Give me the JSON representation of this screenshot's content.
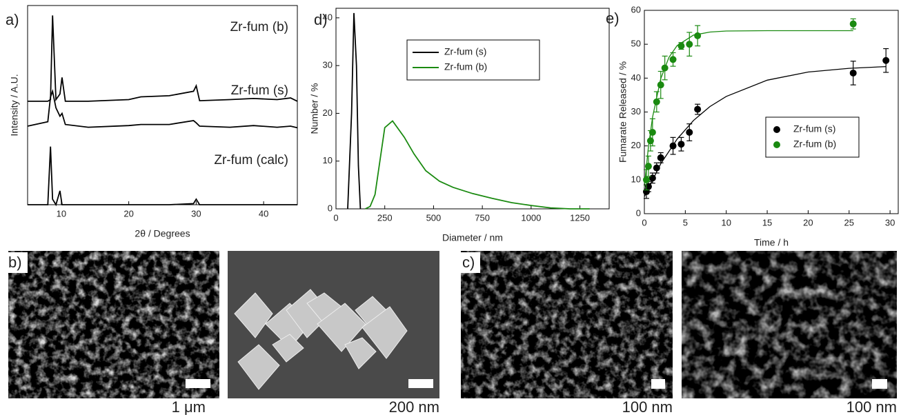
{
  "chart_data": [
    {
      "type": "line",
      "label": "a)",
      "xlabel": "2θ / Degrees",
      "ylabel": "Intensity / A.U.",
      "xlim": [
        5,
        45
      ],
      "xticks": [
        10,
        20,
        30,
        40
      ],
      "ylim": [
        0,
        3.6
      ],
      "x": [
        5,
        8,
        8.4,
        8.7,
        9.2,
        9.8,
        10.1,
        10.6,
        14,
        20,
        21.8,
        26,
        29.6,
        30,
        30.5,
        35,
        38.5,
        42,
        44,
        45
      ],
      "series": [
        {
          "name": "Zr-fum (b)",
          "color": "#000000",
          "values": [
            1.87,
            1.87,
            1.9,
            3.42,
            1.9,
            2.0,
            2.3,
            1.87,
            1.87,
            1.9,
            1.95,
            1.97,
            2.05,
            2.15,
            1.88,
            1.9,
            1.92,
            1.9,
            1.93,
            1.87
          ]
        },
        {
          "name": "Zr-fum (s)",
          "color": "#000000",
          "values": [
            1.42,
            1.5,
            1.95,
            2.05,
            1.75,
            1.6,
            1.65,
            1.45,
            1.4,
            1.43,
            1.45,
            1.45,
            1.52,
            1.48,
            1.42,
            1.4,
            1.43,
            1.4,
            1.42,
            1.39
          ]
        },
        {
          "name": "Zr-fum (calc)",
          "color": "#000000",
          "values": [
            0,
            0,
            1.05,
            0.1,
            0,
            0.25,
            0,
            0,
            0,
            0,
            0,
            0,
            0.02,
            0.1,
            0,
            0,
            0,
            0,
            0,
            0
          ]
        }
      ]
    },
    {
      "type": "line",
      "label": "d)",
      "xlabel": "Diameter / nm",
      "ylabel": "Number / %",
      "xlim": [
        0,
        1400
      ],
      "xticks": [
        0,
        250,
        500,
        750,
        1000,
        1250
      ],
      "ylim": [
        0,
        42
      ],
      "yticks": [
        0,
        10,
        20,
        30,
        40
      ],
      "legend": "upper center",
      "series": [
        {
          "name": "Zr-fum (s)",
          "color": "#000000",
          "x": [
            60,
            80,
            92,
            105,
            115,
            125
          ],
          "values": [
            0,
            20,
            41,
            30,
            9,
            0
          ]
        },
        {
          "name": "Zr-fum (b)",
          "color": "#1a8a10",
          "x": [
            150,
            175,
            200,
            250,
            290,
            350,
            400,
            460,
            530,
            600,
            700,
            800,
            900,
            1000,
            1100,
            1200,
            1300
          ],
          "values": [
            0,
            0.5,
            3,
            17,
            18.4,
            15,
            11.5,
            8,
            5.8,
            4.5,
            3.2,
            2.2,
            1.3,
            0.7,
            0.2,
            0,
            0
          ]
        }
      ]
    },
    {
      "type": "scatter",
      "label": "e)",
      "xlabel": "Time / h",
      "ylabel": "Fumarate Released / %",
      "xlim": [
        0,
        31
      ],
      "xticks": [
        0,
        5,
        10,
        15,
        20,
        25,
        30
      ],
      "ylim": [
        0,
        60
      ],
      "yticks": [
        0,
        10,
        20,
        30,
        40,
        50,
        60
      ],
      "legend": "center right",
      "series": [
        {
          "name": "Zr-fum (s)",
          "color": "#000000",
          "x": [
            0.25,
            0.5,
            1,
            1.5,
            2,
            3.5,
            4.5,
            5.5,
            6.5,
            25.5,
            29.5
          ],
          "values": [
            6.5,
            8,
            10.5,
            13.5,
            16.5,
            20,
            20.5,
            24,
            30.8,
            41.5,
            45.2
          ],
          "errors": [
            2,
            1.5,
            1.5,
            1.5,
            1.5,
            2.5,
            2,
            2.5,
            1.5,
            3.5,
            3.5
          ]
        },
        {
          "name": "Zr-fum (b)",
          "color": "#1a8a10",
          "x": [
            0.25,
            0.5,
            0.75,
            1,
            1.5,
            2,
            2.5,
            3.5,
            4.5,
            5.5,
            6.5,
            25.5
          ],
          "values": [
            10,
            14,
            21.5,
            24,
            33,
            38,
            43,
            45.5,
            49.5,
            50,
            52.5,
            56
          ],
          "errors": [
            3,
            3,
            3,
            4,
            3,
            4,
            3.5,
            2,
            1,
            3.5,
            3,
            1.5
          ]
        }
      ],
      "fits": [
        {
          "color": "#000000",
          "x": [
            0,
            2,
            4,
            6,
            8,
            10,
            15,
            20,
            25,
            29.5
          ],
          "values": [
            5,
            14.7,
            22,
            27.5,
            31.6,
            34.6,
            39.4,
            41.8,
            42.9,
            43.4
          ]
        },
        {
          "color": "#1a8a10",
          "x": [
            0,
            0.5,
            1,
            2,
            3,
            4,
            6,
            8,
            10,
            15,
            20,
            25.5
          ],
          "values": [
            8,
            19.7,
            28.5,
            39.8,
            46.1,
            49.6,
            52.7,
            53.6,
            53.9,
            54,
            54,
            54
          ]
        }
      ]
    }
  ],
  "image_groups": [
    {
      "label": "b)",
      "scale_labels": [
        "1 μm",
        "200 nm"
      ]
    },
    {
      "label": "c)",
      "scale_labels": [
        "100 nm",
        "100 nm"
      ]
    }
  ]
}
